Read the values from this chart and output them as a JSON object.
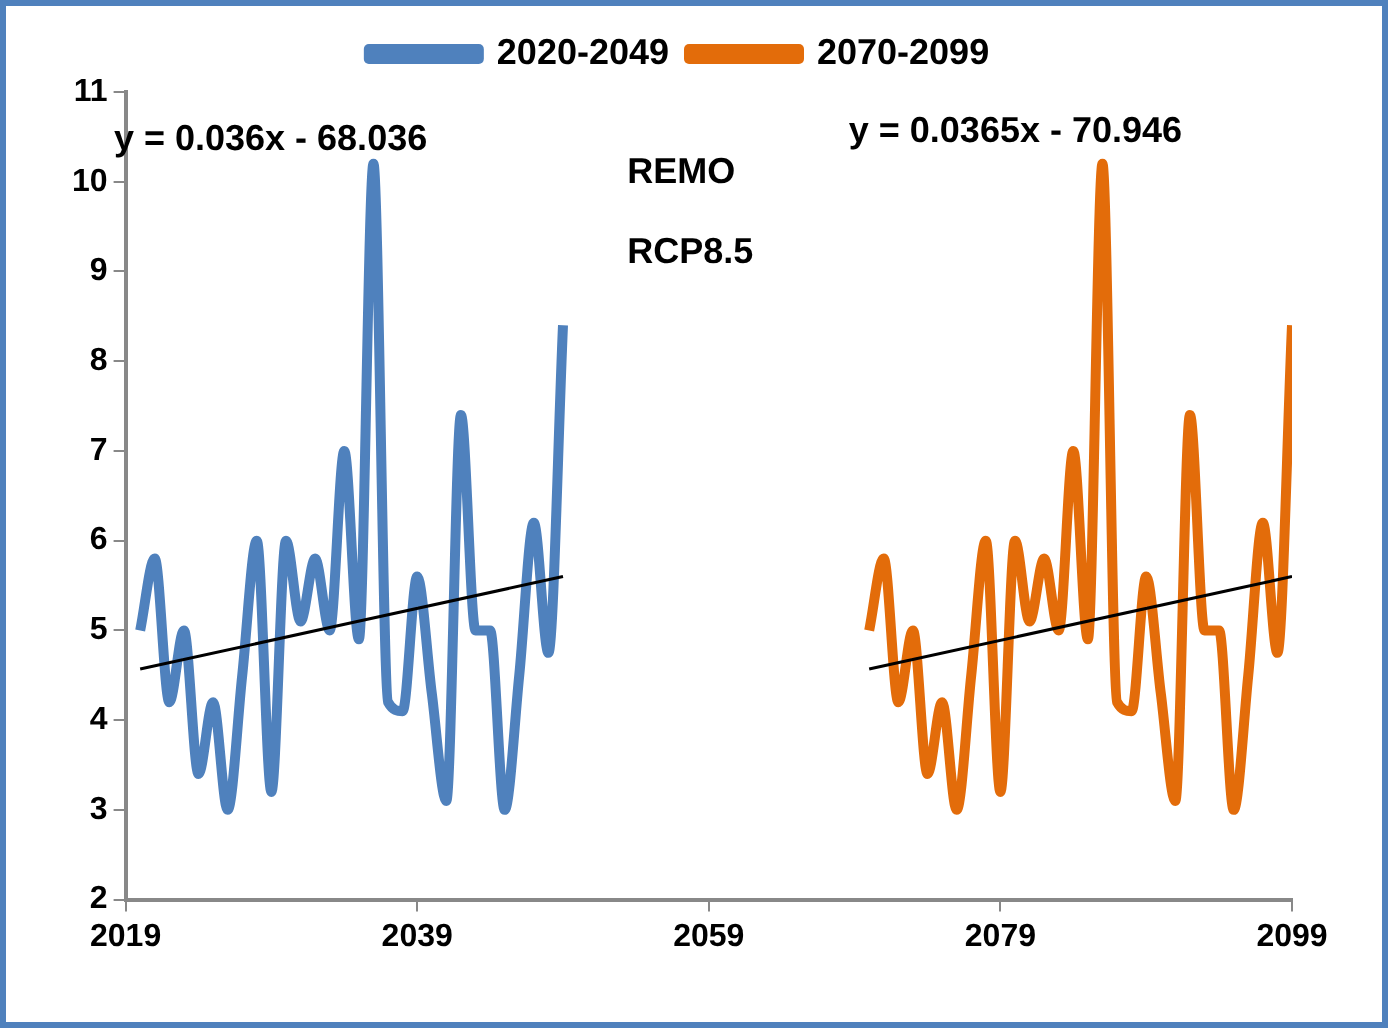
{
  "chart_data": {
    "type": "line",
    "annotations": [
      "y = 0.036x - 68.036",
      "y = 0.0365x - 70.946",
      "REMO",
      "RCP8.5"
    ],
    "xlim": [
      2019,
      2099
    ],
    "xticks": [
      2019,
      2039,
      2059,
      2079,
      2099
    ],
    "ylim": [
      2,
      11
    ],
    "yticks": [
      2,
      3,
      4,
      5,
      6,
      7,
      8,
      9,
      10,
      11
    ],
    "grid": false,
    "legend": "top",
    "marker": "none",
    "line_style": "solid",
    "series": [
      {
        "name": "2020-2049",
        "color": "#4f81bd",
        "x": [
          2020,
          2021,
          2022,
          2023,
          2024,
          2025,
          2026,
          2027,
          2028,
          2029,
          2030,
          2031,
          2032,
          2033,
          2034,
          2035,
          2036,
          2037,
          2038,
          2039,
          2040,
          2041,
          2042,
          2043,
          2044,
          2045,
          2046,
          2047,
          2048,
          2049
        ],
        "values": [
          5.0,
          5.8,
          4.2,
          5.0,
          3.4,
          4.2,
          3.0,
          4.5,
          6.0,
          3.2,
          6.0,
          5.1,
          5.8,
          5.0,
          7.0,
          4.9,
          10.2,
          4.2,
          4.1,
          5.6,
          4.3,
          3.1,
          7.4,
          5.0,
          5.0,
          3.0,
          4.5,
          6.2,
          4.75,
          8.4
        ]
      },
      {
        "name": "2070-2099",
        "color": "#e36c0a",
        "x": [
          2070,
          2071,
          2072,
          2073,
          2074,
          2075,
          2076,
          2077,
          2078,
          2079,
          2080,
          2081,
          2082,
          2083,
          2084,
          2085,
          2086,
          2087,
          2088,
          2089,
          2090,
          2091,
          2092,
          2093,
          2094,
          2095,
          2096,
          2097,
          2098,
          2099
        ],
        "values": [
          5.0,
          5.8,
          4.2,
          5.0,
          3.4,
          4.2,
          3.0,
          4.5,
          6.0,
          3.2,
          6.0,
          5.1,
          5.8,
          5.0,
          7.0,
          4.9,
          10.2,
          4.2,
          4.1,
          5.6,
          4.3,
          3.1,
          7.4,
          5.0,
          5.0,
          3.0,
          4.5,
          6.2,
          4.75,
          8.4
        ]
      },
      {
        "type": "line",
        "color": "#000000",
        "x": [
          2020,
          2049
        ],
        "values": [
          4.57,
          5.6
        ]
      },
      {
        "type": "line",
        "color": "#000000",
        "x": [
          2070,
          2099
        ],
        "values": [
          4.57,
          5.6
        ]
      }
    ]
  }
}
